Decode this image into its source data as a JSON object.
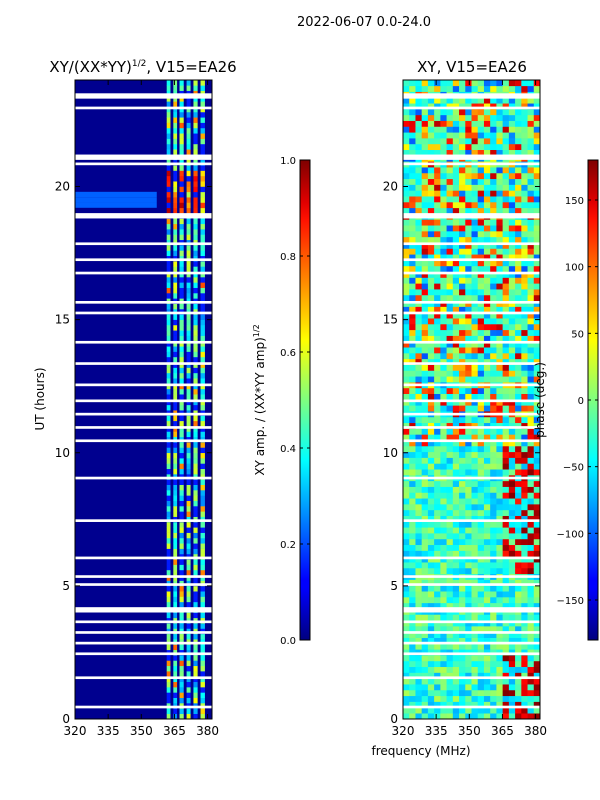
{
  "figure": {
    "suptitle": "2022-06-07 0.0-24.0",
    "xlabel": "frequency (MHz)",
    "colors": {
      "background": "#ffffff",
      "low": "#00008f",
      "high": "#7f0000"
    }
  },
  "chart_data": [
    {
      "type": "heatmap",
      "title_main": "XY/(XX*YY)",
      "title_sup": "1/2",
      "title_tail": ", V15=EA26",
      "xlabel": "",
      "ylabel": "UT (hours)",
      "xlim": [
        320,
        382
      ],
      "ylim": [
        0,
        24
      ],
      "xticks": [
        320,
        335,
        350,
        365,
        380
      ],
      "yticks": [
        0,
        5,
        10,
        15,
        20
      ],
      "colorbar": {
        "label_main": "XY amp. / (XX*YY amp)",
        "label_sup": "1/2",
        "range": [
          0.0,
          1.0
        ],
        "ticks": [
          0.0,
          0.2,
          0.4,
          0.6,
          0.8,
          1.0
        ],
        "tick_labels": [
          "0.0",
          "0.2",
          "0.4",
          "0.6",
          "0.8",
          "1.0"
        ]
      }
    },
    {
      "type": "heatmap",
      "title": "XY, V15=EA26",
      "xlabel": "",
      "ylabel": "",
      "xlim": [
        320,
        382
      ],
      "ylim": [
        0,
        24
      ],
      "xticks": [
        320,
        335,
        350,
        365,
        380
      ],
      "yticks": [
        0,
        5,
        10,
        15,
        20
      ],
      "colorbar": {
        "label": "phase (deg.)",
        "range": [
          -180,
          180
        ],
        "ticks": [
          -150,
          -100,
          -50,
          0,
          50,
          100,
          150
        ],
        "tick_labels": [
          "−150",
          "−100",
          "−50",
          "0",
          "50",
          "100",
          "150"
        ]
      }
    }
  ]
}
